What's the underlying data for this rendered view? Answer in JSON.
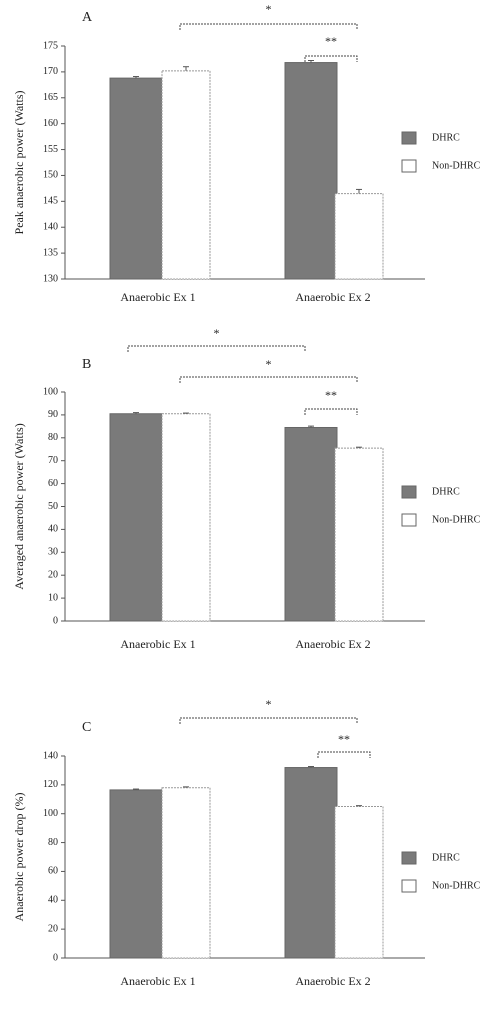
{
  "chart_data": [
    {
      "type": "bar",
      "title": "A",
      "y_label": "Peak anaerobic power (Watts)",
      "categories": [
        "Anaerobic Ex 1",
        "Anaerobic Ex 2"
      ],
      "series": [
        {
          "name": "DHRC",
          "color": "#7a7a7a",
          "values": [
            168.8,
            171.8
          ],
          "errors": [
            0.3,
            0.4
          ]
        },
        {
          "name": "Non-DHRC",
          "color": "#ffffff",
          "values": [
            170.2,
            146.5
          ],
          "errors": [
            0.8,
            0.8
          ]
        }
      ],
      "ylim": [
        130,
        175
      ],
      "yticks": [
        130,
        135,
        140,
        145,
        150,
        155,
        160,
        165,
        170,
        175
      ],
      "annotations": [
        "*",
        "**"
      ]
    },
    {
      "type": "bar",
      "title": "B",
      "y_label": "Averaged anaerobic power (Watts)",
      "categories": [
        "Anaerobic Ex 1",
        "Anaerobic Ex 2"
      ],
      "series": [
        {
          "name": "DHRC",
          "color": "#7a7a7a",
          "values": [
            90.5,
            84.5
          ],
          "errors": [
            0.5,
            0.6
          ]
        },
        {
          "name": "Non-DHRC",
          "color": "#ffffff",
          "values": [
            90.5,
            75.5
          ],
          "errors": [
            0.3,
            0.4
          ]
        }
      ],
      "ylim": [
        0,
        100
      ],
      "yticks": [
        0,
        10,
        20,
        30,
        40,
        50,
        60,
        70,
        80,
        90,
        100
      ],
      "annotations": [
        "*",
        "*",
        "**"
      ]
    },
    {
      "type": "bar",
      "title": "C",
      "y_label": "Anaerobic power drop (%)",
      "categories": [
        "Anaerobic Ex 1",
        "Anaerobic Ex 2"
      ],
      "series": [
        {
          "name": "DHRC",
          "color": "#7a7a7a",
          "values": [
            116.5,
            132
          ],
          "errors": [
            0.6,
            0.7
          ]
        },
        {
          "name": "Non-DHRC",
          "color": "#ffffff",
          "values": [
            118,
            105
          ],
          "errors": [
            0.6,
            0.6
          ]
        }
      ],
      "ylim": [
        0,
        140
      ],
      "yticks": [
        0,
        20,
        40,
        60,
        80,
        100,
        120,
        140
      ],
      "annotations": [
        "*",
        "**"
      ]
    }
  ]
}
